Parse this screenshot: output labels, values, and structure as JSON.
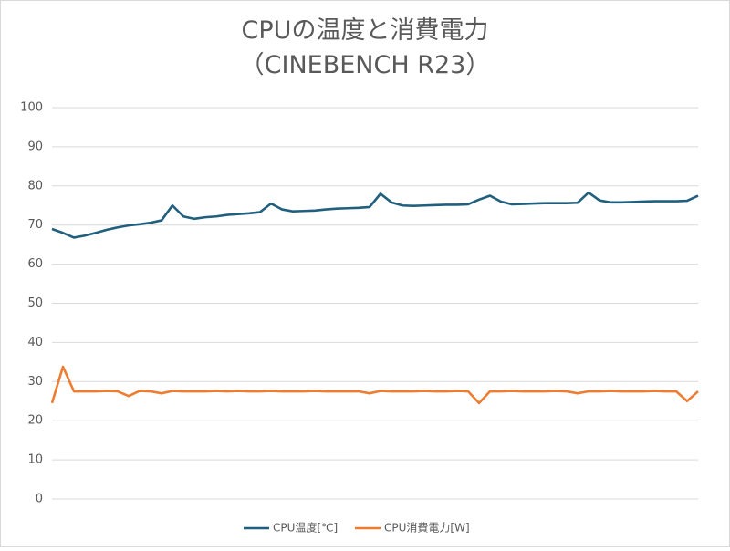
{
  "chart_data": {
    "type": "line",
    "title": "CPUの温度と消費電力",
    "subtitle": "（CINEBENCH R23）",
    "ylim": [
      0,
      100
    ],
    "yticks": [
      0,
      10,
      20,
      30,
      40,
      50,
      60,
      70,
      80,
      90,
      100
    ],
    "grid": true,
    "legend": "bottom",
    "series": [
      {
        "name": "CPU温度[℃]",
        "color": "#215f7e",
        "values": [
          69,
          68,
          66.8,
          67.3,
          68,
          68.8,
          69.4,
          69.9,
          70.2,
          70.6,
          71.2,
          75,
          72.2,
          71.6,
          72,
          72.2,
          72.6,
          72.8,
          73,
          73.3,
          75.5,
          74,
          73.5,
          73.6,
          73.7,
          74,
          74.2,
          74.3,
          74.4,
          74.6,
          78,
          75.8,
          75,
          74.9,
          75,
          75.1,
          75.2,
          75.2,
          75.3,
          76.5,
          77.5,
          76,
          75.3,
          75.4,
          75.5,
          75.6,
          75.6,
          75.6,
          75.7,
          78.3,
          76.3,
          75.8,
          75.8,
          75.9,
          76,
          76.1,
          76.1,
          76.1,
          76.2,
          77.5
        ]
      },
      {
        "name": "CPU消費電力[W]",
        "color": "#ed7d31",
        "values": [
          24.5,
          33.8,
          27.5,
          27.5,
          27.5,
          27.6,
          27.5,
          26.3,
          27.6,
          27.5,
          27,
          27.6,
          27.5,
          27.5,
          27.5,
          27.6,
          27.5,
          27.6,
          27.5,
          27.5,
          27.6,
          27.5,
          27.5,
          27.5,
          27.6,
          27.5,
          27.5,
          27.5,
          27.5,
          27,
          27.6,
          27.5,
          27.5,
          27.5,
          27.6,
          27.5,
          27.5,
          27.6,
          27.5,
          24.5,
          27.5,
          27.5,
          27.6,
          27.5,
          27.5,
          27.5,
          27.6,
          27.5,
          27,
          27.5,
          27.5,
          27.6,
          27.5,
          27.5,
          27.5,
          27.6,
          27.5,
          27.5,
          25,
          27.5
        ]
      }
    ]
  }
}
